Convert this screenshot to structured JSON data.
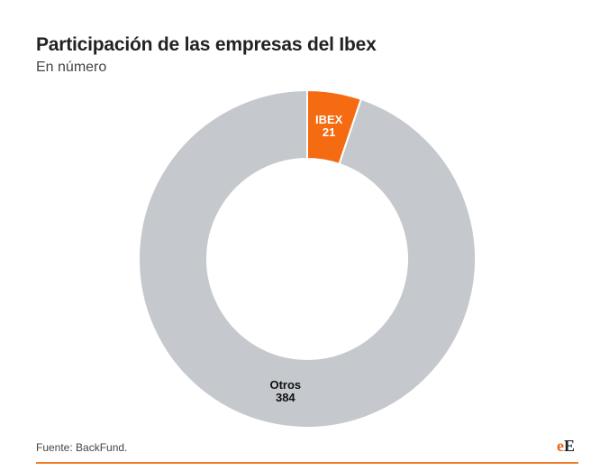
{
  "header": {
    "title": "Participación de las empresas del Ibex",
    "subtitle": "En número"
  },
  "footer": {
    "source": "Fuente: BackFund.",
    "brand_part1": "e",
    "brand_part2": "E"
  },
  "colors": {
    "ibex": "#f46b12",
    "otros": "#c5c9cd",
    "accent": "#f07d28"
  },
  "chart_data": {
    "type": "pie",
    "title": "Participación de las empresas del Ibex",
    "subtitle": "En número",
    "donut": true,
    "slices": [
      {
        "label": "IBEX",
        "value": 21,
        "color": "#f46b12",
        "label_color": "#ffffff"
      },
      {
        "label": "Otros",
        "value": 384,
        "color": "#c5c9cd",
        "label_color": "#111111"
      }
    ]
  }
}
